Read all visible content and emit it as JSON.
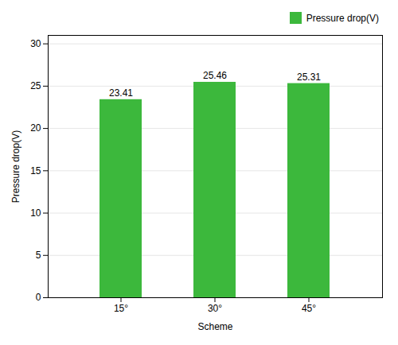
{
  "chart_data": {
    "type": "bar",
    "categories": [
      "15°",
      "30°",
      "45°"
    ],
    "series": [
      {
        "name": "Pressure drop(V)",
        "color": "#3cb83c",
        "values": [
          23.41,
          25.46,
          25.31
        ]
      }
    ],
    "xlabel": "Scheme",
    "ylabel": "Pressure drop(V)",
    "ylim": [
      0,
      31
    ],
    "yticks": [
      0,
      5,
      10,
      15,
      20,
      25,
      30
    ],
    "grid": true,
    "legend": "top-right",
    "data_labels": true
  }
}
